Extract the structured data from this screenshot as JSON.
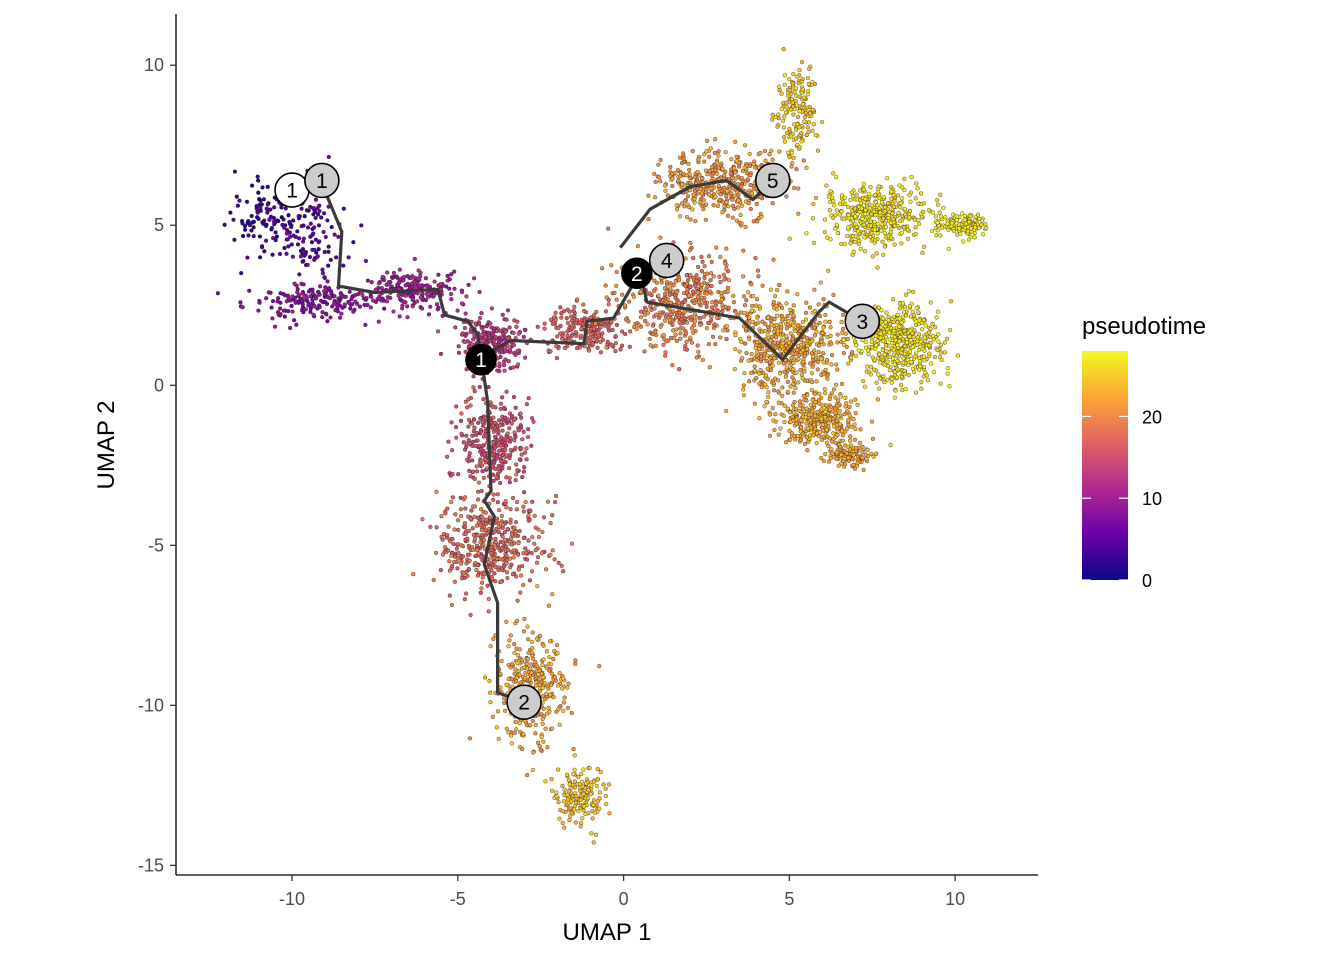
{
  "chart_data": {
    "type": "scatter",
    "xlabel": "UMAP 1",
    "ylabel": "UMAP 2",
    "xlim": [
      -13.5,
      12.5
    ],
    "ylim": [
      -15.3,
      11.6
    ],
    "x_ticks": [
      -10,
      -5,
      0,
      5,
      10
    ],
    "y_ticks": [
      -15,
      -10,
      -5,
      0,
      5,
      10
    ],
    "x_tick_labels": [
      "-10",
      "-5",
      "0",
      "5",
      "10"
    ],
    "y_tick_labels": [
      "-15",
      "-10",
      "-5",
      "0",
      "5",
      "10"
    ],
    "grid": false,
    "color_by": "pseudotime",
    "colorscale": {
      "title": "pseudotime",
      "range": [
        0,
        28
      ],
      "ticks": [
        0,
        10,
        20
      ],
      "tick_labels": [
        "0",
        "10",
        "20"
      ],
      "colors": [
        "#0d0887",
        "#6a00a8",
        "#b12a90",
        "#e16462",
        "#fca636",
        "#f0f921"
      ]
    },
    "point_clusters": [
      {
        "name": "left-loop-start",
        "n": 100,
        "center": [
          -10.8,
          5.3
        ],
        "spread": [
          1.0,
          0.9
        ],
        "pt": [
          0,
          5
        ]
      },
      {
        "name": "left-loop-ring",
        "n": 120,
        "center": [
          -9.5,
          4.8
        ],
        "spread": [
          1.0,
          1.4
        ],
        "pt": [
          2,
          7
        ]
      },
      {
        "name": "left-lower",
        "n": 180,
        "center": [
          -9.5,
          2.6
        ],
        "spread": [
          1.6,
          0.45
        ],
        "pt": [
          6,
          10
        ]
      },
      {
        "name": "left-arm",
        "n": 220,
        "center": [
          -6.5,
          3.0
        ],
        "spread": [
          1.3,
          0.5
        ],
        "pt": [
          8,
          12
        ]
      },
      {
        "name": "center-junction",
        "n": 260,
        "center": [
          -4.0,
          1.3
        ],
        "spread": [
          0.8,
          0.7
        ],
        "pt": [
          11,
          15
        ]
      },
      {
        "name": "lower-trunk",
        "n": 320,
        "center": [
          -3.9,
          -1.8
        ],
        "spread": [
          0.9,
          1.2
        ],
        "pt": [
          13,
          17
        ]
      },
      {
        "name": "lower-body",
        "n": 420,
        "center": [
          -4.0,
          -5.0
        ],
        "spread": [
          1.3,
          1.3
        ],
        "pt": [
          15,
          20
        ]
      },
      {
        "name": "lower-tail",
        "n": 350,
        "center": [
          -2.8,
          -9.5
        ],
        "spread": [
          0.9,
          1.5
        ],
        "pt": [
          20,
          25
        ]
      },
      {
        "name": "lower-tip",
        "n": 160,
        "center": [
          -1.3,
          -12.8
        ],
        "spread": [
          0.6,
          0.8
        ],
        "pt": [
          23,
          26
        ]
      },
      {
        "name": "bridge",
        "n": 200,
        "center": [
          -1.2,
          1.7
        ],
        "spread": [
          1.0,
          0.6
        ],
        "pt": [
          15,
          18
        ]
      },
      {
        "name": "center-right",
        "n": 450,
        "center": [
          1.8,
          2.6
        ],
        "spread": [
          1.6,
          1.2
        ],
        "pt": [
          17,
          22
        ]
      },
      {
        "name": "upper-arm",
        "n": 420,
        "center": [
          3.0,
          6.3
        ],
        "spread": [
          1.6,
          0.9
        ],
        "pt": [
          19,
          24
        ]
      },
      {
        "name": "upper-spike",
        "n": 160,
        "center": [
          5.2,
          8.5
        ],
        "spread": [
          0.5,
          1.1
        ],
        "pt": [
          23,
          27
        ]
      },
      {
        "name": "right-top",
        "n": 420,
        "center": [
          7.6,
          5.3
        ],
        "spread": [
          1.3,
          0.8
        ],
        "pt": [
          25,
          28
        ]
      },
      {
        "name": "right-top-tip",
        "n": 120,
        "center": [
          10.2,
          5.0
        ],
        "spread": [
          0.6,
          0.3
        ],
        "pt": [
          26,
          28
        ]
      },
      {
        "name": "right-mid",
        "n": 520,
        "center": [
          5.0,
          1.2
        ],
        "spread": [
          1.4,
          1.2
        ],
        "pt": [
          20,
          25
        ]
      },
      {
        "name": "right-lower",
        "n": 320,
        "center": [
          5.8,
          -1.1
        ],
        "spread": [
          1.0,
          0.7
        ],
        "pt": [
          21,
          25
        ]
      },
      {
        "name": "right-bottom",
        "n": 120,
        "center": [
          6.8,
          -2.2
        ],
        "spread": [
          0.5,
          0.3
        ],
        "pt": [
          21,
          24
        ]
      },
      {
        "name": "right-lobe",
        "n": 450,
        "center": [
          8.4,
          1.3
        ],
        "spread": [
          1.0,
          1.1
        ],
        "pt": [
          25,
          28
        ]
      }
    ],
    "trajectory": [
      [
        [
          -9.1,
          6.3
        ],
        [
          -8.5,
          4.8
        ],
        [
          -8.6,
          3.1
        ],
        [
          -7.5,
          2.9
        ],
        [
          -5.6,
          3.0
        ],
        [
          -5.4,
          2.2
        ],
        [
          -4.7,
          2.0
        ],
        [
          -4.4,
          1.6
        ],
        [
          -4.3,
          0.9
        ]
      ],
      [
        [
          -4.3,
          0.9
        ],
        [
          -4.1,
          -0.5
        ],
        [
          -4.0,
          -3.3
        ],
        [
          -4.2,
          -3.6
        ],
        [
          -3.9,
          -4.1
        ],
        [
          -4.2,
          -5.6
        ],
        [
          -3.8,
          -6.8
        ],
        [
          -3.8,
          -9.6
        ],
        [
          -3.0,
          -9.9
        ]
      ],
      [
        [
          -4.3,
          0.9
        ],
        [
          -3.4,
          1.4
        ],
        [
          -1.2,
          1.3
        ],
        [
          -1.1,
          2.0
        ],
        [
          -0.3,
          2.1
        ],
        [
          0.2,
          3.0
        ],
        [
          0.5,
          3.6
        ]
      ],
      [
        [
          0.5,
          3.6
        ],
        [
          1.3,
          3.9
        ]
      ],
      [
        [
          0.5,
          3.6
        ],
        [
          0.7,
          2.6
        ],
        [
          3.5,
          2.1
        ],
        [
          4.8,
          0.8
        ],
        [
          5.9,
          2.3
        ],
        [
          6.2,
          2.6
        ],
        [
          7.2,
          2.0
        ]
      ],
      [
        [
          -0.1,
          4.3
        ],
        [
          0.8,
          5.5
        ],
        [
          2.0,
          6.2
        ],
        [
          3.1,
          6.4
        ],
        [
          3.9,
          5.8
        ],
        [
          4.5,
          6.4
        ]
      ]
    ],
    "nodes": [
      {
        "label": "1",
        "x": -10.0,
        "y": 6.1,
        "kind": "root"
      },
      {
        "label": "1",
        "x": -9.1,
        "y": 6.4,
        "kind": "leaf"
      },
      {
        "label": "2",
        "x": -3.0,
        "y": -9.9,
        "kind": "leaf"
      },
      {
        "label": "3",
        "x": 7.2,
        "y": 2.0,
        "kind": "leaf"
      },
      {
        "label": "4",
        "x": 1.3,
        "y": 3.9,
        "kind": "leaf"
      },
      {
        "label": "5",
        "x": 4.5,
        "y": 6.4,
        "kind": "leaf"
      },
      {
        "label": "1",
        "x": -4.3,
        "y": 0.8,
        "kind": "branch"
      },
      {
        "label": "2",
        "x": 0.4,
        "y": 3.5,
        "kind": "branch"
      }
    ]
  }
}
